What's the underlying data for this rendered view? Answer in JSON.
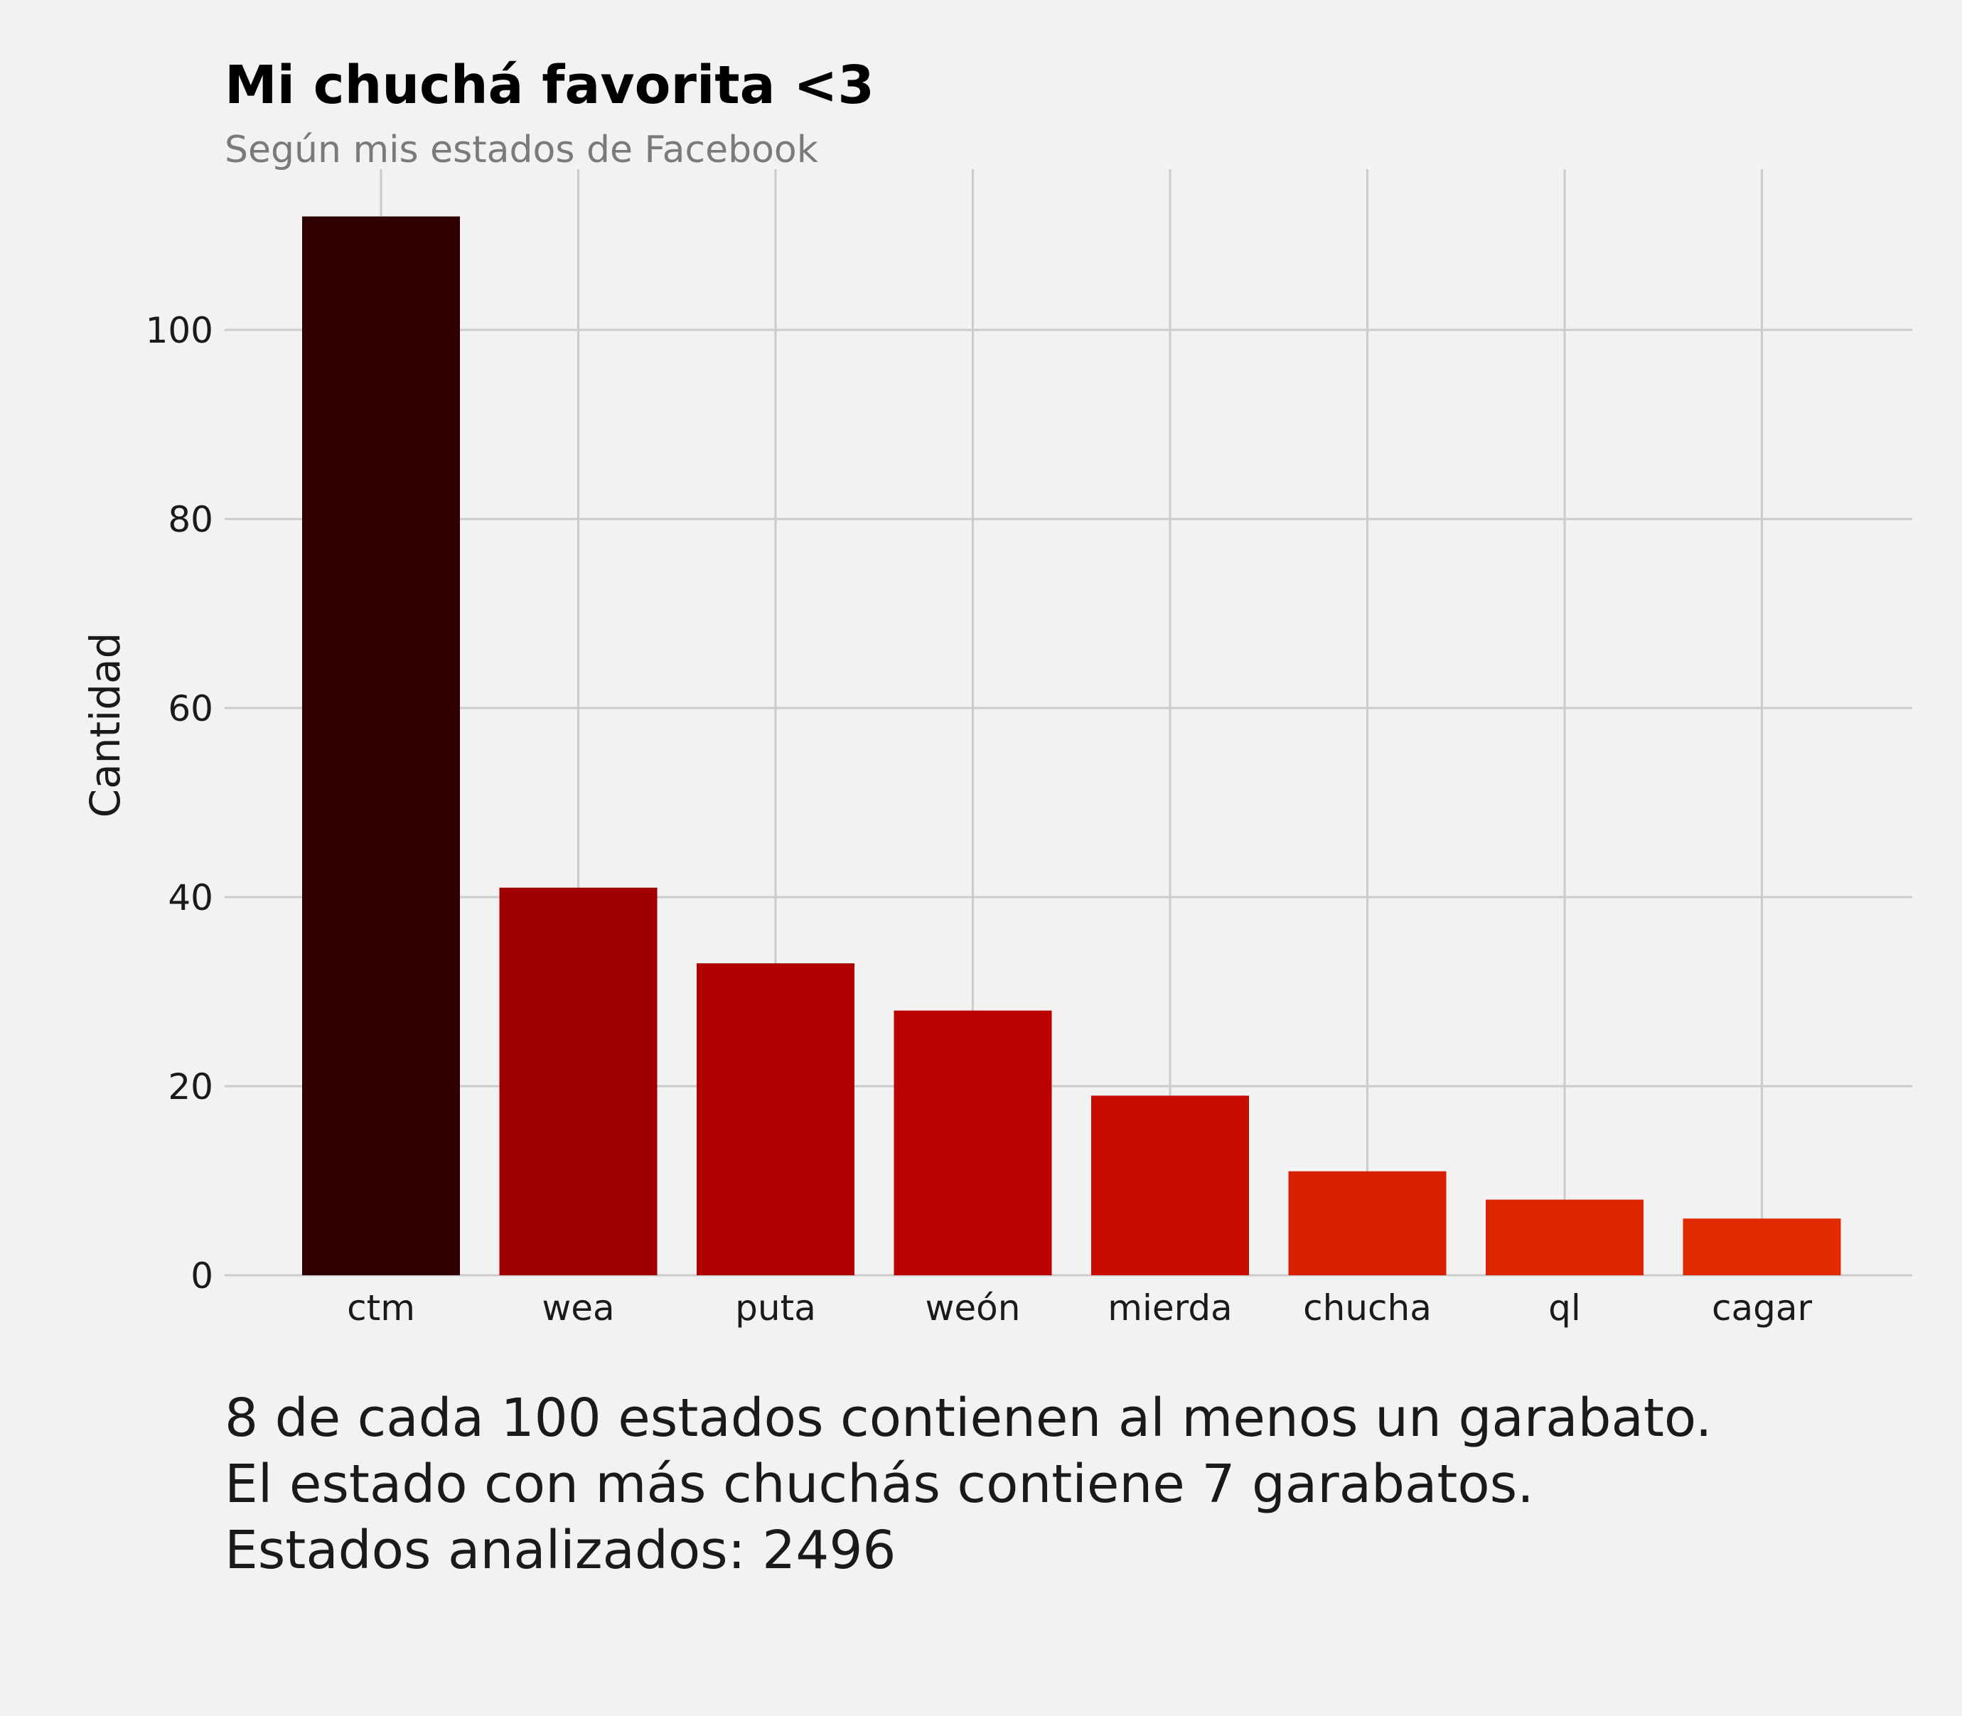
{
  "chart_data": {
    "type": "bar",
    "title": "Mi chuchá favorita <3",
    "subtitle": "Según mis estados de Facebook",
    "xlabel": "",
    "ylabel": "Cantidad",
    "categories": [
      "ctm",
      "wea",
      "puta",
      "weón",
      "mierda",
      "chucha",
      "ql",
      "cagar"
    ],
    "values": [
      112,
      41,
      33,
      28,
      19,
      11,
      8,
      6
    ],
    "colors": [
      "#2e0000",
      "#a10000",
      "#b00000",
      "#bb0000",
      "#c90c00",
      "#d81e00",
      "#dd2400",
      "#e22a00"
    ],
    "ylim": [
      0,
      117
    ],
    "yticks": [
      0,
      20,
      40,
      60,
      80,
      100
    ],
    "grid": true,
    "legend": "none",
    "caption": [
      "8 de cada 100 estados contienen al menos un garabato.",
      "El estado con más chuchás contiene 7 garabatos.",
      "Estados analizados: 2496"
    ]
  }
}
